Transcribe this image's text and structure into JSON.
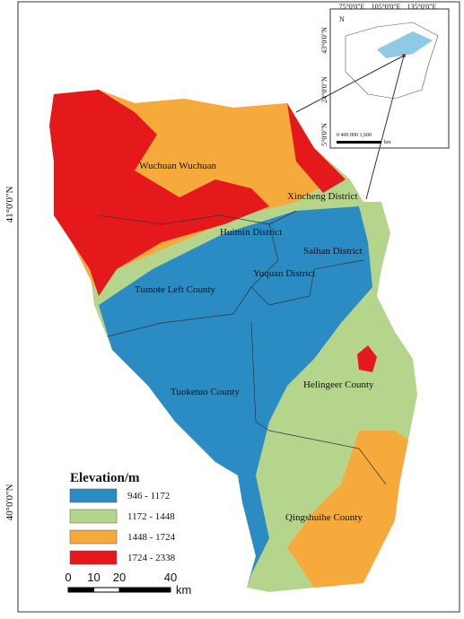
{
  "map": {
    "lat_labels": [
      "41°0'0\"N",
      "40°0'0\"N"
    ],
    "districts": [
      {
        "label": "Wuchuan Wuchuan"
      },
      {
        "label": "Xincheng District"
      },
      {
        "label": "Huimin District"
      },
      {
        "label": "Saihan District"
      },
      {
        "label": "Yuquan District"
      },
      {
        "label": "Tumote Left County"
      },
      {
        "label": "Tuoketuo County"
      },
      {
        "label": "Helingeer County"
      },
      {
        "label": "Qingshuihe County"
      }
    ],
    "legend": {
      "title": "Elevation/m",
      "items": [
        {
          "label": "946 - 1172",
          "color": "#2b8cc4"
        },
        {
          "label": "1172 - 1448",
          "color": "#b6d58c"
        },
        {
          "label": "1448 - 1724",
          "color": "#f7aa3c"
        },
        {
          "label": "1724 - 2338",
          "color": "#e5191b"
        }
      ]
    },
    "scale_bar": {
      "ticks": [
        0,
        10,
        20,
        40
      ],
      "unit": "km"
    }
  },
  "inset": {
    "lon_labels": [
      "75°0'0\"E",
      "105°0'0\"E",
      "135°0'0\"E"
    ],
    "lat_labels": [
      "43°0'0\"N",
      "24°0'0\"N",
      "5°0'0\"N"
    ],
    "north": "N",
    "scale": "0  400 800     1,600",
    "unit": "km"
  }
}
